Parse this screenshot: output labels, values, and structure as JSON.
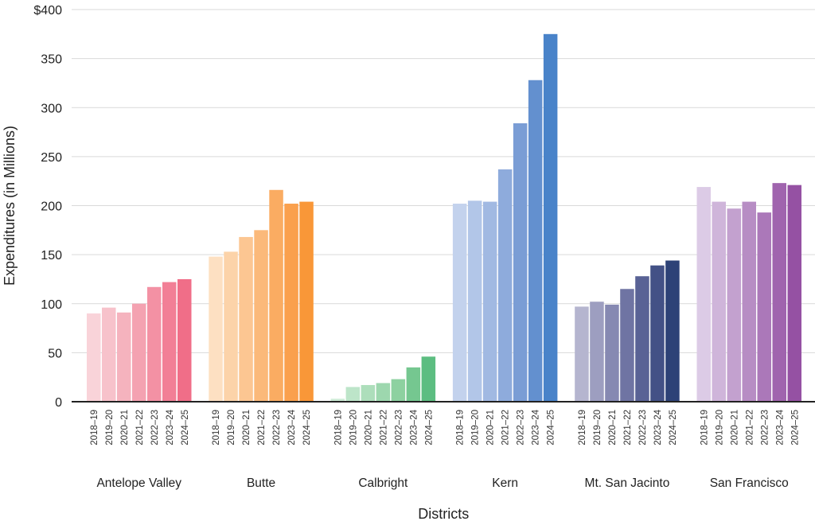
{
  "chart_data": {
    "type": "bar",
    "title": "",
    "xlabel": "Districts",
    "ylabel": "Expenditures (in Millions)",
    "ylim": [
      0,
      400
    ],
    "yticks": [
      0,
      50,
      100,
      150,
      200,
      250,
      300,
      350,
      400
    ],
    "ytick_labels": [
      "0",
      "50",
      "100",
      "150",
      "200",
      "250",
      "300",
      "350",
      "$400"
    ],
    "grid": true,
    "years": [
      "2018–19",
      "2019–20",
      "2020–21",
      "2021–22",
      "2022–23",
      "2023–24",
      "2024–25"
    ],
    "groups": [
      {
        "name": "Antelope Valley",
        "values": [
          90,
          96,
          91,
          100,
          117,
          122,
          125
        ],
        "colors": [
          "#f9d3d9",
          "#f7c2cb",
          "#f5b3be",
          "#f4a2b1",
          "#f391a4",
          "#f27f96",
          "#f06e88"
        ]
      },
      {
        "name": "Butte",
        "values": [
          148,
          153,
          168,
          175,
          216,
          202,
          204
        ],
        "colors": [
          "#fde0c2",
          "#fcd3a9",
          "#fcc692",
          "#fbb97a",
          "#faac62",
          "#faa04d",
          "#f99738"
        ]
      },
      {
        "name": "Calbright",
        "values": [
          3,
          15,
          17,
          19,
          23,
          35,
          46
        ],
        "colors": [
          "#cdebd6",
          "#bde5c9",
          "#addebb",
          "#9dd7ae",
          "#8dd1a0",
          "#75c790",
          "#5cbd81"
        ]
      },
      {
        "name": "Kern",
        "values": [
          202,
          205,
          204,
          237,
          284,
          328,
          375
        ],
        "colors": [
          "#c3d2ed",
          "#b2c6e8",
          "#a1b9e2",
          "#8eabdc",
          "#7a9dd5",
          "#6390cf",
          "#4983c9"
        ]
      },
      {
        "name": "Mt. San Jacinto",
        "values": [
          97,
          102,
          99,
          115,
          128,
          139,
          144
        ],
        "colors": [
          "#b5b5cf",
          "#9d9ec0",
          "#8689b2",
          "#6f74a3",
          "#596295",
          "#435186",
          "#2d4277"
        ]
      },
      {
        "name": "San Francisco",
        "values": [
          219,
          204,
          197,
          204,
          193,
          223,
          221
        ],
        "colors": [
          "#dccbe6",
          "#cfb5da",
          "#c3a1cf",
          "#b78dc4",
          "#ab78b9",
          "#a064ae",
          "#9551a3"
        ]
      }
    ]
  }
}
